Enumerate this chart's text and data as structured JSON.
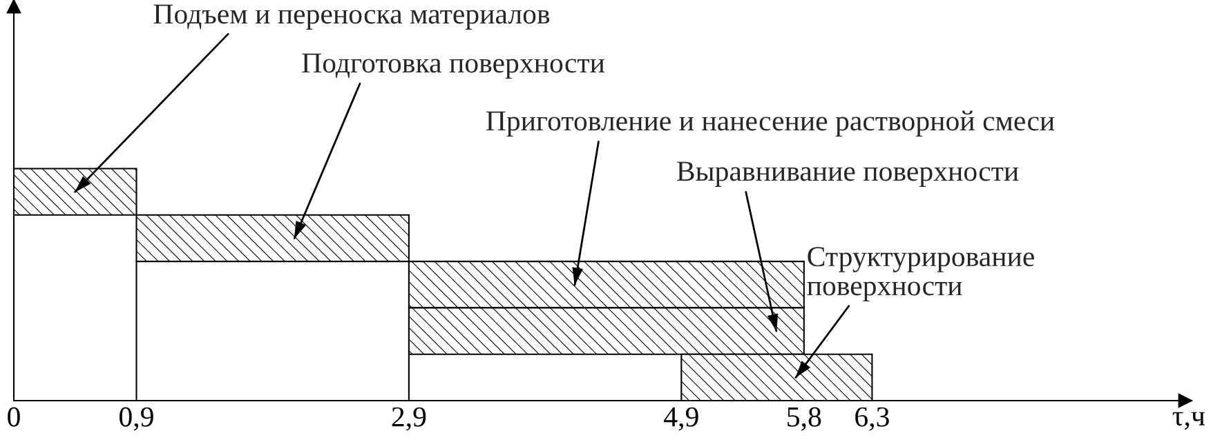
{
  "chart_data": {
    "type": "bar",
    "orientation": "horizontal",
    "categories": [
      null,
      null,
      null,
      null,
      null
    ],
    "base": [
      0,
      0.9,
      2.9,
      2.9,
      4.9
    ],
    "values": [
      0.9,
      2.0,
      2.9,
      2.9,
      1.4
    ],
    "color": "#000000",
    "xlabel": "τ,ч",
    "xlim": [
      0,
      8.6
    ],
    "xticks": [
      0,
      {
        "value": 0.9,
        "label": "0,9"
      },
      {
        "value": 2.9,
        "label": "2,9"
      },
      {
        "value": 4.9,
        "label": "4,9"
      },
      {
        "value": 5.8,
        "label": "5,8"
      },
      {
        "value": 6.3,
        "label": "6,3"
      }
    ],
    "tick_labels": "x",
    "ref_lines": [
      {
        "axis": "x",
        "value": 0.9,
        "color": "#000000"
      },
      {
        "axis": "x",
        "value": 2.9,
        "color": "#000000"
      }
    ],
    "annotations": [
      "Подъем и переноска материалов",
      "Подготовка поверхности",
      "Приготовление и нанесение растворной смеси",
      "Выравнивание поверхности",
      "Структурирование\nповерхности"
    ]
  }
}
